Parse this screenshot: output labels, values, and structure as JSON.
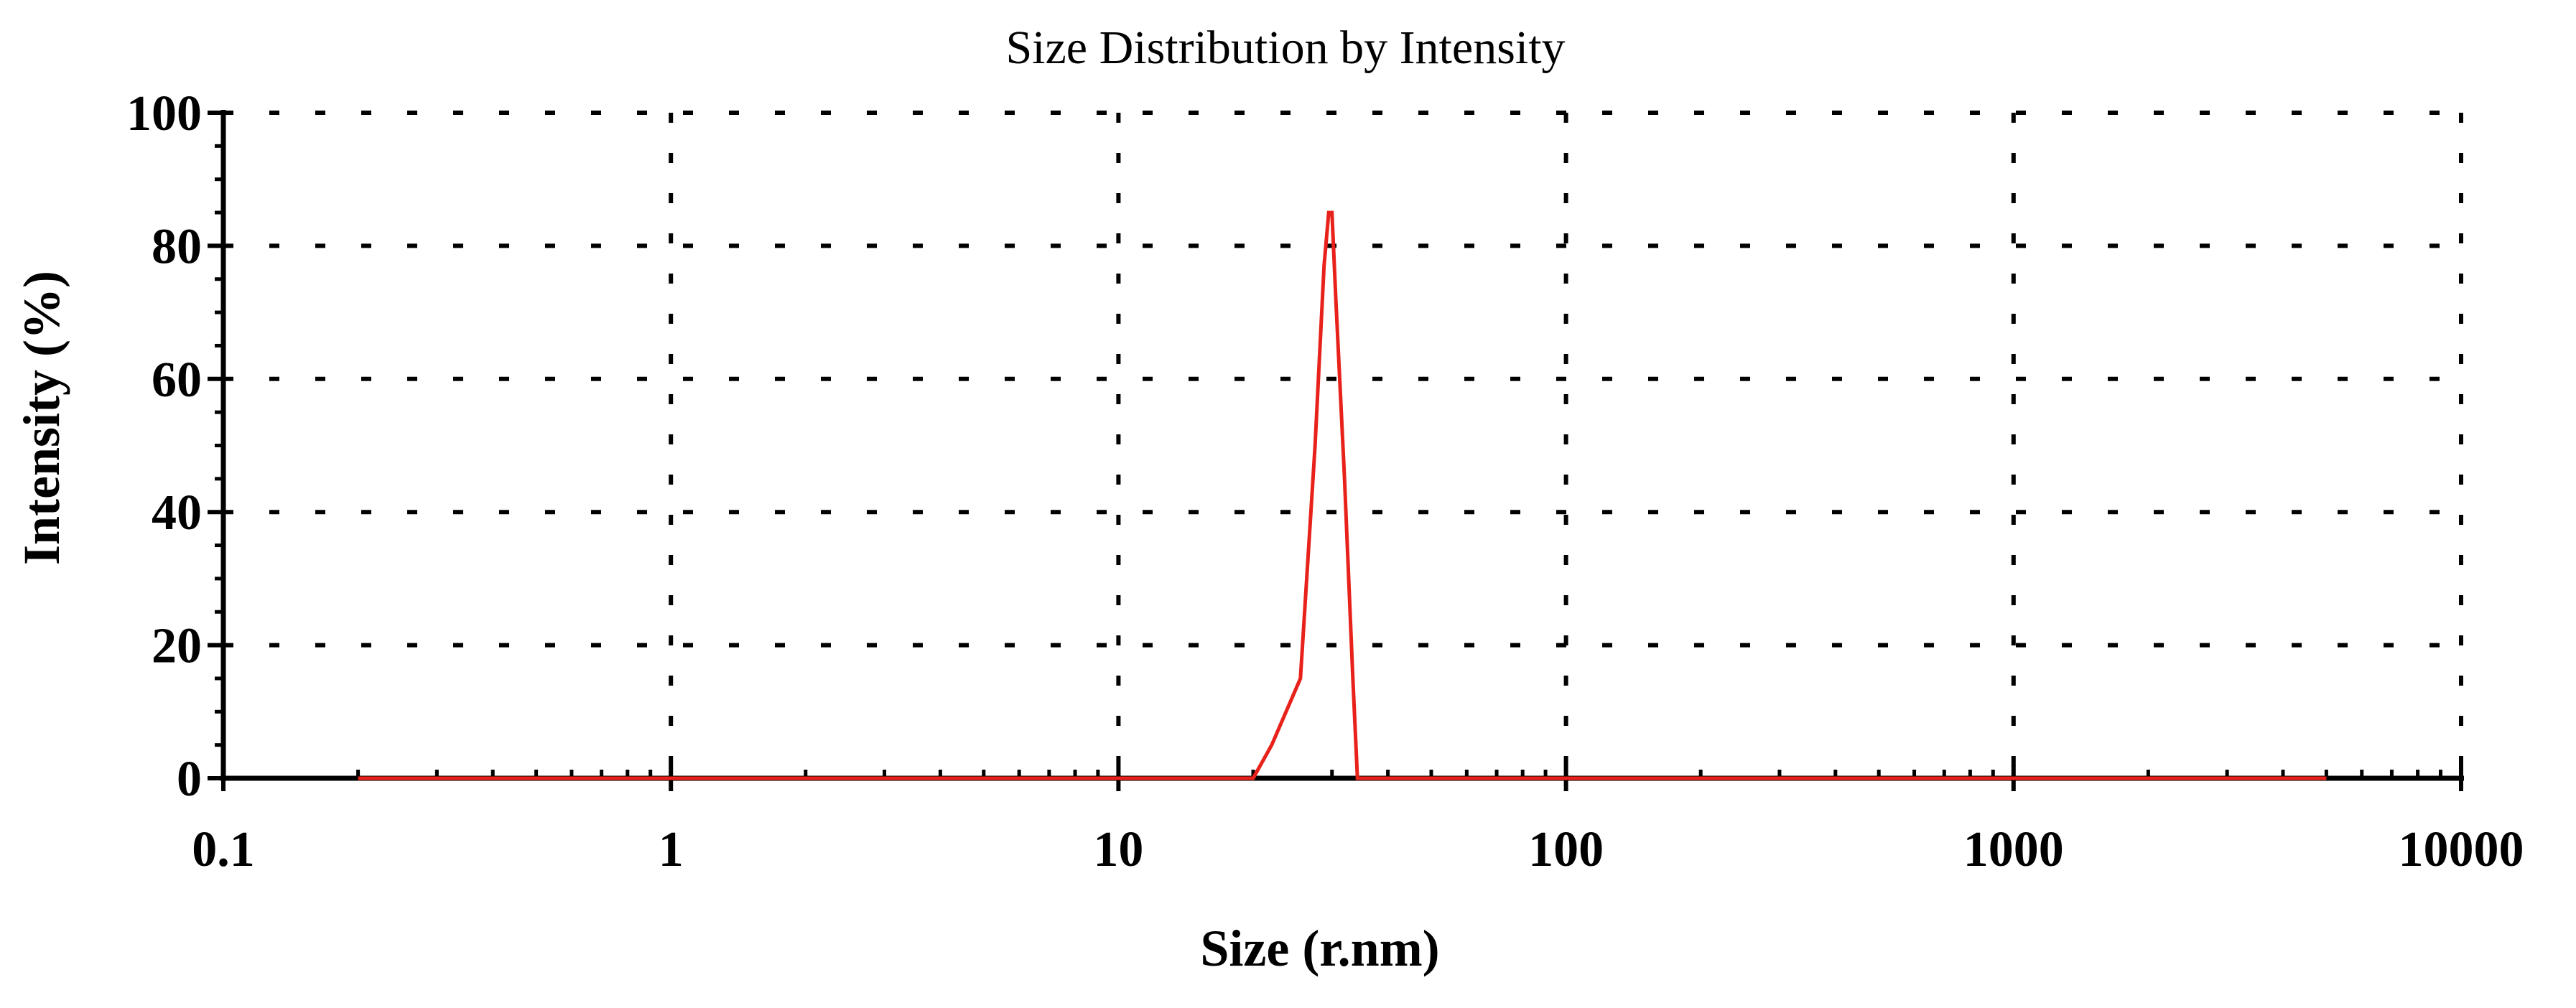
{
  "chart_data": {
    "type": "line",
    "title": "Size Distribution by Intensity",
    "xlabel": "Size (r.nm)",
    "ylabel": "Intensity (%)",
    "x_scale": "log",
    "xlim": [
      0.1,
      10000
    ],
    "ylim": [
      0,
      100
    ],
    "x_ticks": [
      "0.1",
      "1",
      "10",
      "100",
      "1000",
      "10000"
    ],
    "y_ticks": [
      "0",
      "20",
      "40",
      "60",
      "80",
      "100"
    ],
    "grid": true,
    "legend": "none",
    "colors": {
      "series": "#e8221b",
      "axis": "#000000"
    },
    "series": [
      {
        "x": [
          0.2,
          20.0,
          22.0,
          25.5,
          27.5,
          28.8,
          29.5,
          30.0,
          30.6,
          32.0,
          33.4,
          34.2,
          5000
        ],
        "y": [
          0,
          0,
          5,
          15,
          50,
          77,
          85,
          85,
          72,
          45,
          15,
          0,
          0
        ]
      }
    ]
  }
}
